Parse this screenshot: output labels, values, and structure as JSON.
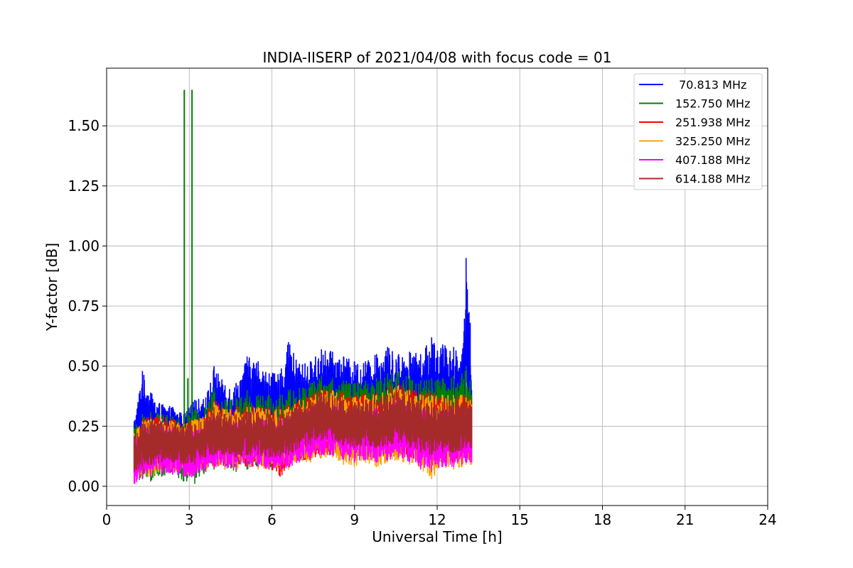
{
  "chart_data": {
    "type": "line",
    "title": "INDIA-IISERP of 2021/04/08 with focus code = 01",
    "xlabel": "Universal Time [h]",
    "ylabel": "Y-factor [dB]",
    "xlim": [
      0,
      24
    ],
    "ylim": [
      -0.08,
      1.74
    ],
    "xticks": [
      0,
      3,
      6,
      9,
      12,
      15,
      18,
      21,
      24
    ],
    "xtick_labels": [
      "0",
      "3",
      "6",
      "9",
      "12",
      "15",
      "18",
      "21",
      "24"
    ],
    "yticks": [
      0.0,
      0.25,
      0.5,
      0.75,
      1.0,
      1.25,
      1.5
    ],
    "ytick_labels": [
      "0.00",
      "0.25",
      "0.50",
      "0.75",
      "1.00",
      "1.25",
      "1.50"
    ],
    "grid": true,
    "legend_position": "top-right",
    "series": [
      {
        "name": " 70.813 MHz",
        "color": "#0000ff",
        "x": [
          1.0,
          1.3,
          1.6,
          2.0,
          2.4,
          2.8,
          3.2,
          3.6,
          3.9,
          4.3,
          4.7,
          5.1,
          5.5,
          5.9,
          6.3,
          6.6,
          7.0,
          7.4,
          7.8,
          8.2,
          8.6,
          9.0,
          9.4,
          9.8,
          10.2,
          10.6,
          11.0,
          11.4,
          11.8,
          12.2,
          12.6,
          12.9,
          13.05,
          13.2,
          13.25
        ],
        "y_high": [
          0.27,
          0.48,
          0.39,
          0.34,
          0.33,
          0.3,
          0.36,
          0.37,
          0.5,
          0.42,
          0.43,
          0.54,
          0.52,
          0.47,
          0.47,
          0.6,
          0.51,
          0.52,
          0.57,
          0.56,
          0.54,
          0.52,
          0.52,
          0.55,
          0.58,
          0.55,
          0.56,
          0.55,
          0.62,
          0.59,
          0.58,
          0.55,
          0.95,
          0.68,
          0.4
        ],
        "y_low": [
          0.1,
          0.15,
          0.13,
          0.12,
          0.13,
          0.12,
          0.14,
          0.15,
          0.16,
          0.16,
          0.15,
          0.16,
          0.17,
          0.16,
          0.16,
          0.17,
          0.18,
          0.18,
          0.2,
          0.21,
          0.2,
          0.2,
          0.21,
          0.2,
          0.21,
          0.21,
          0.2,
          0.19,
          0.18,
          0.18,
          0.18,
          0.19,
          0.2,
          0.2,
          0.2
        ]
      },
      {
        "name": "152.750 MHz",
        "color": "#008000",
        "x": [
          1.0,
          1.3,
          1.6,
          2.0,
          2.4,
          2.8,
          3.2,
          3.6,
          3.9,
          4.3,
          4.7,
          5.1,
          5.5,
          5.9,
          6.3,
          6.6,
          7.0,
          7.4,
          7.8,
          8.2,
          8.6,
          9.0,
          9.4,
          9.8,
          10.2,
          10.6,
          11.0,
          11.4,
          11.8,
          12.2,
          12.6,
          12.9,
          13.05,
          13.2,
          13.25
        ],
        "y_high": [
          0.24,
          0.3,
          0.31,
          0.3,
          0.29,
          0.28,
          0.32,
          0.33,
          0.41,
          0.36,
          0.37,
          0.4,
          0.38,
          0.38,
          0.38,
          0.4,
          0.41,
          0.43,
          0.46,
          0.45,
          0.44,
          0.43,
          0.44,
          0.45,
          0.47,
          0.48,
          0.46,
          0.44,
          0.45,
          0.45,
          0.46,
          0.47,
          0.5,
          0.44,
          0.38
        ],
        "y_low": [
          0.05,
          0.03,
          0.02,
          0.04,
          0.05,
          0.02,
          0.01,
          0.06,
          0.07,
          0.07,
          0.06,
          0.07,
          0.08,
          0.07,
          0.07,
          0.08,
          0.1,
          0.1,
          0.12,
          0.13,
          0.12,
          0.12,
          0.12,
          0.12,
          0.13,
          0.12,
          0.11,
          0.1,
          0.1,
          0.1,
          0.1,
          0.1,
          0.11,
          0.11,
          0.11
        ],
        "spikes": [
          {
            "x": 2.82,
            "y": 1.65
          },
          {
            "x": 3.1,
            "y": 1.65
          },
          {
            "x": 2.95,
            "y": 0.45
          }
        ]
      },
      {
        "name": "251.938 MHz",
        "color": "#ff0000",
        "x": [
          1.0,
          1.3,
          1.6,
          2.0,
          2.4,
          2.8,
          3.2,
          3.6,
          3.9,
          4.3,
          4.7,
          5.1,
          5.5,
          5.9,
          6.3,
          6.6,
          7.0,
          7.4,
          7.8,
          8.2,
          8.6,
          9.0,
          9.4,
          9.8,
          10.2,
          10.6,
          11.0,
          11.4,
          11.8,
          12.2,
          12.6,
          12.9,
          13.05,
          13.2,
          13.25
        ],
        "y_high": [
          0.22,
          0.28,
          0.29,
          0.29,
          0.28,
          0.27,
          0.28,
          0.3,
          0.36,
          0.32,
          0.33,
          0.34,
          0.33,
          0.33,
          0.33,
          0.34,
          0.36,
          0.38,
          0.41,
          0.4,
          0.39,
          0.38,
          0.39,
          0.39,
          0.41,
          0.43,
          0.41,
          0.39,
          0.39,
          0.38,
          0.38,
          0.38,
          0.38,
          0.37,
          0.35
        ],
        "y_low": [
          0.06,
          0.06,
          0.06,
          0.07,
          0.07,
          0.06,
          0.06,
          0.08,
          0.09,
          0.08,
          0.08,
          0.08,
          0.08,
          0.07,
          0.04,
          0.07,
          0.11,
          0.11,
          0.13,
          0.13,
          0.12,
          0.12,
          0.12,
          0.12,
          0.12,
          0.13,
          0.11,
          0.1,
          0.1,
          0.1,
          0.1,
          0.1,
          0.1,
          0.11,
          0.1
        ]
      },
      {
        "name": "325.250 MHz",
        "color": "#ffa500",
        "x": [
          1.0,
          1.3,
          1.6,
          2.0,
          2.4,
          2.8,
          3.2,
          3.6,
          3.9,
          4.3,
          4.7,
          5.1,
          5.5,
          5.9,
          6.3,
          6.6,
          7.0,
          7.4,
          7.8,
          8.2,
          8.6,
          9.0,
          9.4,
          9.8,
          10.2,
          10.6,
          11.0,
          11.4,
          11.8,
          12.2,
          12.6,
          12.9,
          13.05,
          13.2,
          13.25
        ],
        "y_high": [
          0.22,
          0.27,
          0.28,
          0.28,
          0.27,
          0.26,
          0.28,
          0.3,
          0.35,
          0.32,
          0.32,
          0.33,
          0.33,
          0.32,
          0.32,
          0.33,
          0.36,
          0.37,
          0.4,
          0.4,
          0.38,
          0.37,
          0.38,
          0.38,
          0.4,
          0.42,
          0.4,
          0.38,
          0.38,
          0.38,
          0.38,
          0.38,
          0.37,
          0.36,
          0.34
        ],
        "y_low": [
          0.05,
          0.04,
          0.04,
          0.06,
          0.06,
          0.05,
          0.05,
          0.07,
          0.08,
          0.07,
          0.07,
          0.08,
          0.07,
          0.07,
          0.07,
          0.07,
          0.1,
          0.1,
          0.12,
          0.12,
          0.09,
          0.08,
          0.1,
          0.08,
          0.1,
          0.11,
          0.09,
          0.07,
          0.03,
          0.08,
          0.07,
          0.08,
          0.09,
          0.09,
          0.09
        ]
      },
      {
        "name": "407.188 MHz",
        "color": "#ff00ff",
        "x": [
          1.0,
          1.3,
          1.6,
          2.0,
          2.4,
          2.8,
          3.2,
          3.6,
          3.9,
          4.3,
          4.7,
          5.1,
          5.5,
          5.9,
          6.3,
          6.6,
          7.0,
          7.4,
          7.8,
          8.2,
          8.6,
          9.0,
          9.4,
          9.8,
          10.2,
          10.6,
          11.0,
          11.4,
          11.8,
          12.2,
          12.6,
          12.9,
          13.05,
          13.2,
          13.25
        ],
        "y_high": [
          0.2,
          0.24,
          0.25,
          0.25,
          0.24,
          0.23,
          0.24,
          0.26,
          0.3,
          0.27,
          0.27,
          0.28,
          0.28,
          0.28,
          0.28,
          0.29,
          0.31,
          0.32,
          0.34,
          0.34,
          0.33,
          0.32,
          0.33,
          0.33,
          0.34,
          0.36,
          0.34,
          0.32,
          0.32,
          0.32,
          0.32,
          0.32,
          0.32,
          0.31,
          0.3
        ],
        "y_low": [
          0.01,
          0.03,
          0.04,
          0.05,
          0.05,
          0.04,
          0.04,
          0.06,
          0.08,
          0.08,
          0.07,
          0.08,
          0.08,
          0.07,
          0.07,
          0.08,
          0.1,
          0.11,
          0.13,
          0.13,
          0.11,
          0.1,
          0.11,
          0.1,
          0.11,
          0.12,
          0.1,
          0.07,
          0.06,
          0.08,
          0.08,
          0.09,
          0.1,
          0.1,
          0.1
        ]
      },
      {
        "name": "614.188 MHz",
        "color": "#a52a2a",
        "x": [
          1.0,
          1.3,
          1.6,
          2.0,
          2.4,
          2.8,
          3.2,
          3.6,
          3.9,
          4.3,
          4.7,
          5.1,
          5.5,
          5.9,
          6.3,
          6.6,
          7.0,
          7.4,
          7.8,
          8.2,
          8.6,
          9.0,
          9.4,
          9.8,
          10.2,
          10.6,
          11.0,
          11.4,
          11.8,
          12.2,
          12.6,
          12.9,
          13.05,
          13.2,
          13.25
        ],
        "y_high": [
          0.21,
          0.26,
          0.27,
          0.27,
          0.26,
          0.25,
          0.26,
          0.28,
          0.33,
          0.3,
          0.3,
          0.31,
          0.31,
          0.3,
          0.3,
          0.31,
          0.34,
          0.36,
          0.39,
          0.38,
          0.36,
          0.35,
          0.36,
          0.36,
          0.38,
          0.4,
          0.38,
          0.36,
          0.35,
          0.35,
          0.35,
          0.35,
          0.35,
          0.34,
          0.33
        ],
        "y_low": [
          0.06,
          0.08,
          0.09,
          0.1,
          0.1,
          0.09,
          0.09,
          0.12,
          0.13,
          0.13,
          0.12,
          0.13,
          0.13,
          0.12,
          0.12,
          0.13,
          0.16,
          0.17,
          0.19,
          0.19,
          0.17,
          0.16,
          0.17,
          0.16,
          0.17,
          0.18,
          0.16,
          0.14,
          0.13,
          0.14,
          0.14,
          0.15,
          0.16,
          0.16,
          0.16
        ]
      }
    ]
  }
}
